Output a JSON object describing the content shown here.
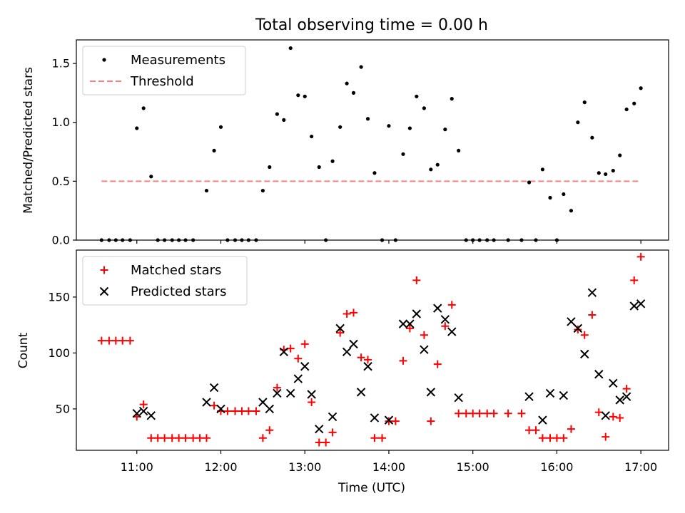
{
  "figure": {
    "title": "Total observing time = 0.00 h",
    "xlabel": "Time (UTC)",
    "x_ticks": [
      "11:00",
      "12:00",
      "13:00",
      "14:00",
      "15:00",
      "16:00",
      "17:00"
    ]
  },
  "chart_data": [
    {
      "type": "scatter",
      "ylabel": "Matched/Predicted stars",
      "xlim": [
        10.28,
        17.33
      ],
      "ylim": [
        0,
        1.7
      ],
      "y_ticks": [
        "0.0",
        "0.5",
        "1.0",
        "1.5"
      ],
      "y_tick_values": [
        0,
        0.5,
        1.0,
        1.5
      ],
      "legend": {
        "placement": "upper-left",
        "entries": [
          "Measurements",
          "Threshold"
        ]
      },
      "threshold": {
        "name": "Threshold",
        "value": 0.5,
        "x_range": [
          10.58,
          17.0
        ],
        "color": "#ff8080",
        "style": "dashed"
      },
      "series": [
        {
          "name": "Measurements",
          "color": "#000000",
          "marker": "dot",
          "points": [
            [
              10.58,
              0.0
            ],
            [
              10.67,
              0.0
            ],
            [
              10.75,
              0.0
            ],
            [
              10.83,
              0.0
            ],
            [
              10.92,
              0.0
            ],
            [
              11.0,
              0.95
            ],
            [
              11.08,
              1.12
            ],
            [
              11.17,
              0.54
            ],
            [
              11.25,
              0.0
            ],
            [
              11.33,
              0.0
            ],
            [
              11.42,
              0.0
            ],
            [
              11.5,
              0.0
            ],
            [
              11.58,
              0.0
            ],
            [
              11.67,
              0.0
            ],
            [
              11.83,
              0.42
            ],
            [
              11.92,
              0.76
            ],
            [
              12.0,
              0.96
            ],
            [
              12.08,
              0.0
            ],
            [
              12.17,
              0.0
            ],
            [
              12.25,
              0.0
            ],
            [
              12.33,
              0.0
            ],
            [
              12.42,
              0.0
            ],
            [
              12.5,
              0.42
            ],
            [
              12.58,
              0.62
            ],
            [
              12.67,
              1.07
            ],
            [
              12.75,
              1.02
            ],
            [
              12.83,
              1.63
            ],
            [
              12.92,
              1.23
            ],
            [
              13.0,
              1.22
            ],
            [
              13.08,
              0.88
            ],
            [
              13.17,
              0.62
            ],
            [
              13.25,
              0.0
            ],
            [
              13.33,
              0.67
            ],
            [
              13.42,
              0.96
            ],
            [
              13.5,
              1.33
            ],
            [
              13.58,
              1.25
            ],
            [
              13.67,
              1.47
            ],
            [
              13.75,
              1.03
            ],
            [
              13.83,
              0.57
            ],
            [
              13.92,
              0.0
            ],
            [
              14.0,
              0.97
            ],
            [
              14.08,
              0.0
            ],
            [
              14.17,
              0.73
            ],
            [
              14.25,
              0.95
            ],
            [
              14.33,
              1.22
            ],
            [
              14.42,
              1.12
            ],
            [
              14.5,
              0.6
            ],
            [
              14.58,
              0.64
            ],
            [
              14.67,
              0.94
            ],
            [
              14.75,
              1.2
            ],
            [
              14.83,
              0.76
            ],
            [
              14.92,
              0.0
            ],
            [
              15.0,
              0.0
            ],
            [
              15.08,
              0.0
            ],
            [
              15.17,
              0.0
            ],
            [
              15.25,
              0.0
            ],
            [
              15.42,
              0.0
            ],
            [
              15.58,
              0.0
            ],
            [
              15.67,
              0.49
            ],
            [
              15.75,
              0.0
            ],
            [
              15.83,
              0.6
            ],
            [
              15.92,
              0.36
            ],
            [
              16.0,
              0.0
            ],
            [
              16.08,
              0.39
            ],
            [
              16.17,
              0.25
            ],
            [
              16.25,
              1.0
            ],
            [
              16.33,
              1.17
            ],
            [
              16.42,
              0.87
            ],
            [
              16.5,
              0.57
            ],
            [
              16.58,
              0.56
            ],
            [
              16.67,
              0.59
            ],
            [
              16.75,
              0.72
            ],
            [
              16.83,
              1.11
            ],
            [
              16.92,
              1.16
            ],
            [
              17.0,
              1.29
            ]
          ]
        }
      ]
    },
    {
      "type": "scatter",
      "ylabel": "Count",
      "xlim": [
        10.28,
        17.33
      ],
      "ylim": [
        13,
        192
      ],
      "y_ticks": [
        "50",
        "100",
        "150"
      ],
      "y_tick_values": [
        50,
        100,
        150
      ],
      "legend": {
        "placement": "upper-left",
        "entries": [
          "Matched stars",
          "Predicted stars"
        ]
      },
      "series": [
        {
          "name": "Matched stars",
          "color": "#ff0000",
          "marker": "plus",
          "points": [
            [
              10.58,
              111
            ],
            [
              10.67,
              111
            ],
            [
              10.75,
              111
            ],
            [
              10.83,
              111
            ],
            [
              10.92,
              111
            ],
            [
              11.0,
              43
            ],
            [
              11.08,
              54
            ],
            [
              11.17,
              24
            ],
            [
              11.25,
              24
            ],
            [
              11.33,
              24
            ],
            [
              11.42,
              24
            ],
            [
              11.5,
              24
            ],
            [
              11.58,
              24
            ],
            [
              11.67,
              24
            ],
            [
              11.75,
              24
            ],
            [
              11.83,
              24
            ],
            [
              11.92,
              53
            ],
            [
              12.0,
              48
            ],
            [
              12.08,
              48
            ],
            [
              12.17,
              48
            ],
            [
              12.25,
              48
            ],
            [
              12.33,
              48
            ],
            [
              12.42,
              48
            ],
            [
              12.5,
              24
            ],
            [
              12.58,
              31
            ],
            [
              12.67,
              69
            ],
            [
              12.75,
              103
            ],
            [
              12.83,
              104
            ],
            [
              12.92,
              95
            ],
            [
              13.0,
              108
            ],
            [
              13.08,
              56
            ],
            [
              13.17,
              20
            ],
            [
              13.25,
              20
            ],
            [
              13.33,
              29
            ],
            [
              13.42,
              118
            ],
            [
              13.5,
              135
            ],
            [
              13.58,
              136
            ],
            [
              13.67,
              96
            ],
            [
              13.75,
              94
            ],
            [
              13.83,
              24
            ],
            [
              13.92,
              24
            ],
            [
              14.0,
              39
            ],
            [
              14.08,
              39
            ],
            [
              14.17,
              93
            ],
            [
              14.25,
              122
            ],
            [
              14.33,
              165
            ],
            [
              14.42,
              116
            ],
            [
              14.5,
              39
            ],
            [
              14.58,
              90
            ],
            [
              14.67,
              124
            ],
            [
              14.75,
              143
            ],
            [
              14.83,
              46
            ],
            [
              14.92,
              46
            ],
            [
              15.0,
              46
            ],
            [
              15.08,
              46
            ],
            [
              15.17,
              46
            ],
            [
              15.25,
              46
            ],
            [
              15.42,
              46
            ],
            [
              15.58,
              46
            ],
            [
              15.67,
              31
            ],
            [
              15.75,
              31
            ],
            [
              15.83,
              24
            ],
            [
              15.92,
              24
            ],
            [
              16.0,
              24
            ],
            [
              16.08,
              24
            ],
            [
              16.17,
              32
            ],
            [
              16.25,
              121
            ],
            [
              16.33,
              116
            ],
            [
              16.42,
              134
            ],
            [
              16.5,
              47
            ],
            [
              16.58,
              25
            ],
            [
              16.67,
              43
            ],
            [
              16.75,
              42
            ],
            [
              16.83,
              68
            ],
            [
              16.92,
              165
            ],
            [
              17.0,
              186
            ]
          ]
        },
        {
          "name": "Predicted stars",
          "color": "#000000",
          "marker": "x",
          "points": [
            [
              11.0,
              46
            ],
            [
              11.08,
              48
            ],
            [
              11.17,
              44
            ],
            [
              11.83,
              56
            ],
            [
              11.92,
              69
            ],
            [
              12.0,
              50
            ],
            [
              12.5,
              56
            ],
            [
              12.58,
              50
            ],
            [
              12.67,
              64
            ],
            [
              12.75,
              101
            ],
            [
              12.83,
              64
            ],
            [
              12.92,
              77
            ],
            [
              13.0,
              88
            ],
            [
              13.08,
              63
            ],
            [
              13.17,
              32
            ],
            [
              13.33,
              43
            ],
            [
              13.42,
              122
            ],
            [
              13.5,
              101
            ],
            [
              13.58,
              108
            ],
            [
              13.67,
              65
            ],
            [
              13.75,
              88
            ],
            [
              13.83,
              42
            ],
            [
              14.0,
              40
            ],
            [
              14.17,
              126
            ],
            [
              14.25,
              126
            ],
            [
              14.33,
              135
            ],
            [
              14.42,
              103
            ],
            [
              14.5,
              65
            ],
            [
              14.58,
              140
            ],
            [
              14.67,
              130
            ],
            [
              14.75,
              119
            ],
            [
              14.83,
              60
            ],
            [
              15.67,
              61
            ],
            [
              15.83,
              40
            ],
            [
              15.92,
              64
            ],
            [
              16.08,
              62
            ],
            [
              16.17,
              128
            ],
            [
              16.25,
              122
            ],
            [
              16.33,
              99
            ],
            [
              16.42,
              154
            ],
            [
              16.5,
              81
            ],
            [
              16.58,
              44
            ],
            [
              16.67,
              73
            ],
            [
              16.75,
              58
            ],
            [
              16.83,
              61
            ],
            [
              16.92,
              142
            ],
            [
              17.0,
              144
            ]
          ]
        }
      ]
    }
  ]
}
